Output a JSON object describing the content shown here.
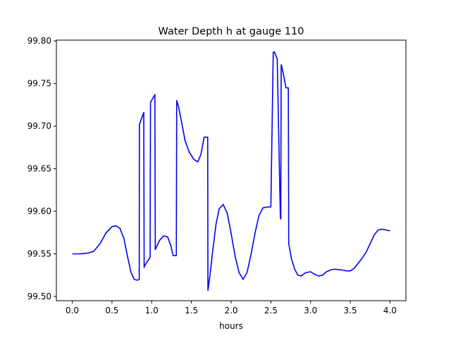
{
  "chart_data": {
    "type": "line",
    "title": "Water Depth h at gauge 110",
    "xlabel": "hours",
    "ylabel": "",
    "xlim": [
      -0.2,
      4.2
    ],
    "ylim": [
      99.495,
      99.801
    ],
    "xticks": [
      0.0,
      0.5,
      1.0,
      1.5,
      2.0,
      2.5,
      3.0,
      3.5,
      4.0
    ],
    "xtick_labels": [
      "0.0",
      "0.5",
      "1.0",
      "1.5",
      "2.0",
      "2.5",
      "3.0",
      "3.5",
      "4.0"
    ],
    "yticks": [
      99.5,
      99.55,
      99.6,
      99.65,
      99.7,
      99.75,
      99.8
    ],
    "ytick_labels": [
      "99.50",
      "99.55",
      "99.60",
      "99.65",
      "99.70",
      "99.75",
      "99.80"
    ],
    "grid": false,
    "legend": "none",
    "series": [
      {
        "color": "#0000ee",
        "x": [
          0.0,
          0.1,
          0.2,
          0.27,
          0.35,
          0.42,
          0.5,
          0.55,
          0.6,
          0.65,
          0.7,
          0.74,
          0.78,
          0.82,
          0.84,
          0.843,
          0.845,
          0.9,
          0.905,
          0.91,
          0.98,
          0.985,
          1.04,
          1.045,
          1.1,
          1.15,
          1.2,
          1.24,
          1.27,
          1.31,
          1.315,
          1.34,
          1.38,
          1.42,
          1.47,
          1.53,
          1.58,
          1.62,
          1.66,
          1.705,
          1.708,
          1.73,
          1.77,
          1.81,
          1.85,
          1.9,
          1.95,
          2.0,
          2.05,
          2.1,
          2.15,
          2.2,
          2.25,
          2.3,
          2.35,
          2.4,
          2.45,
          2.5,
          2.53,
          2.54,
          2.545,
          2.58,
          2.62,
          2.625,
          2.63,
          2.635,
          2.66,
          2.69,
          2.72,
          2.725,
          2.76,
          2.8,
          2.84,
          2.88,
          2.94,
          3.0,
          3.05,
          3.1,
          3.15,
          3.2,
          3.25,
          3.3,
          3.4,
          3.45,
          3.5,
          3.55,
          3.6,
          3.65,
          3.7,
          3.75,
          3.8,
          3.85,
          3.9,
          3.95,
          4.0
        ],
        "y": [
          99.55,
          99.55,
          99.551,
          99.553,
          99.562,
          99.574,
          99.582,
          99.583,
          99.58,
          99.568,
          99.545,
          99.528,
          99.52,
          99.519,
          99.52,
          99.52,
          99.702,
          99.716,
          99.534,
          99.536,
          99.546,
          99.728,
          99.737,
          99.555,
          99.566,
          99.571,
          99.57,
          99.56,
          99.548,
          99.548,
          99.73,
          99.722,
          99.703,
          99.683,
          99.67,
          99.661,
          99.658,
          99.667,
          99.687,
          99.687,
          99.507,
          99.522,
          99.555,
          99.585,
          99.603,
          99.608,
          99.598,
          99.574,
          99.547,
          99.528,
          99.52,
          99.528,
          99.549,
          99.574,
          99.595,
          99.604,
          99.605,
          99.605,
          99.787,
          99.787,
          99.787,
          99.779,
          99.592,
          99.591,
          99.772,
          99.771,
          99.76,
          99.745,
          99.745,
          99.562,
          99.544,
          99.532,
          99.525,
          99.524,
          99.528,
          99.529,
          99.526,
          99.524,
          99.525,
          99.529,
          99.531,
          99.532,
          99.531,
          99.53,
          99.53,
          99.533,
          99.539,
          99.545,
          99.552,
          99.562,
          99.572,
          99.578,
          99.579,
          99.578,
          99.577
        ]
      }
    ]
  }
}
